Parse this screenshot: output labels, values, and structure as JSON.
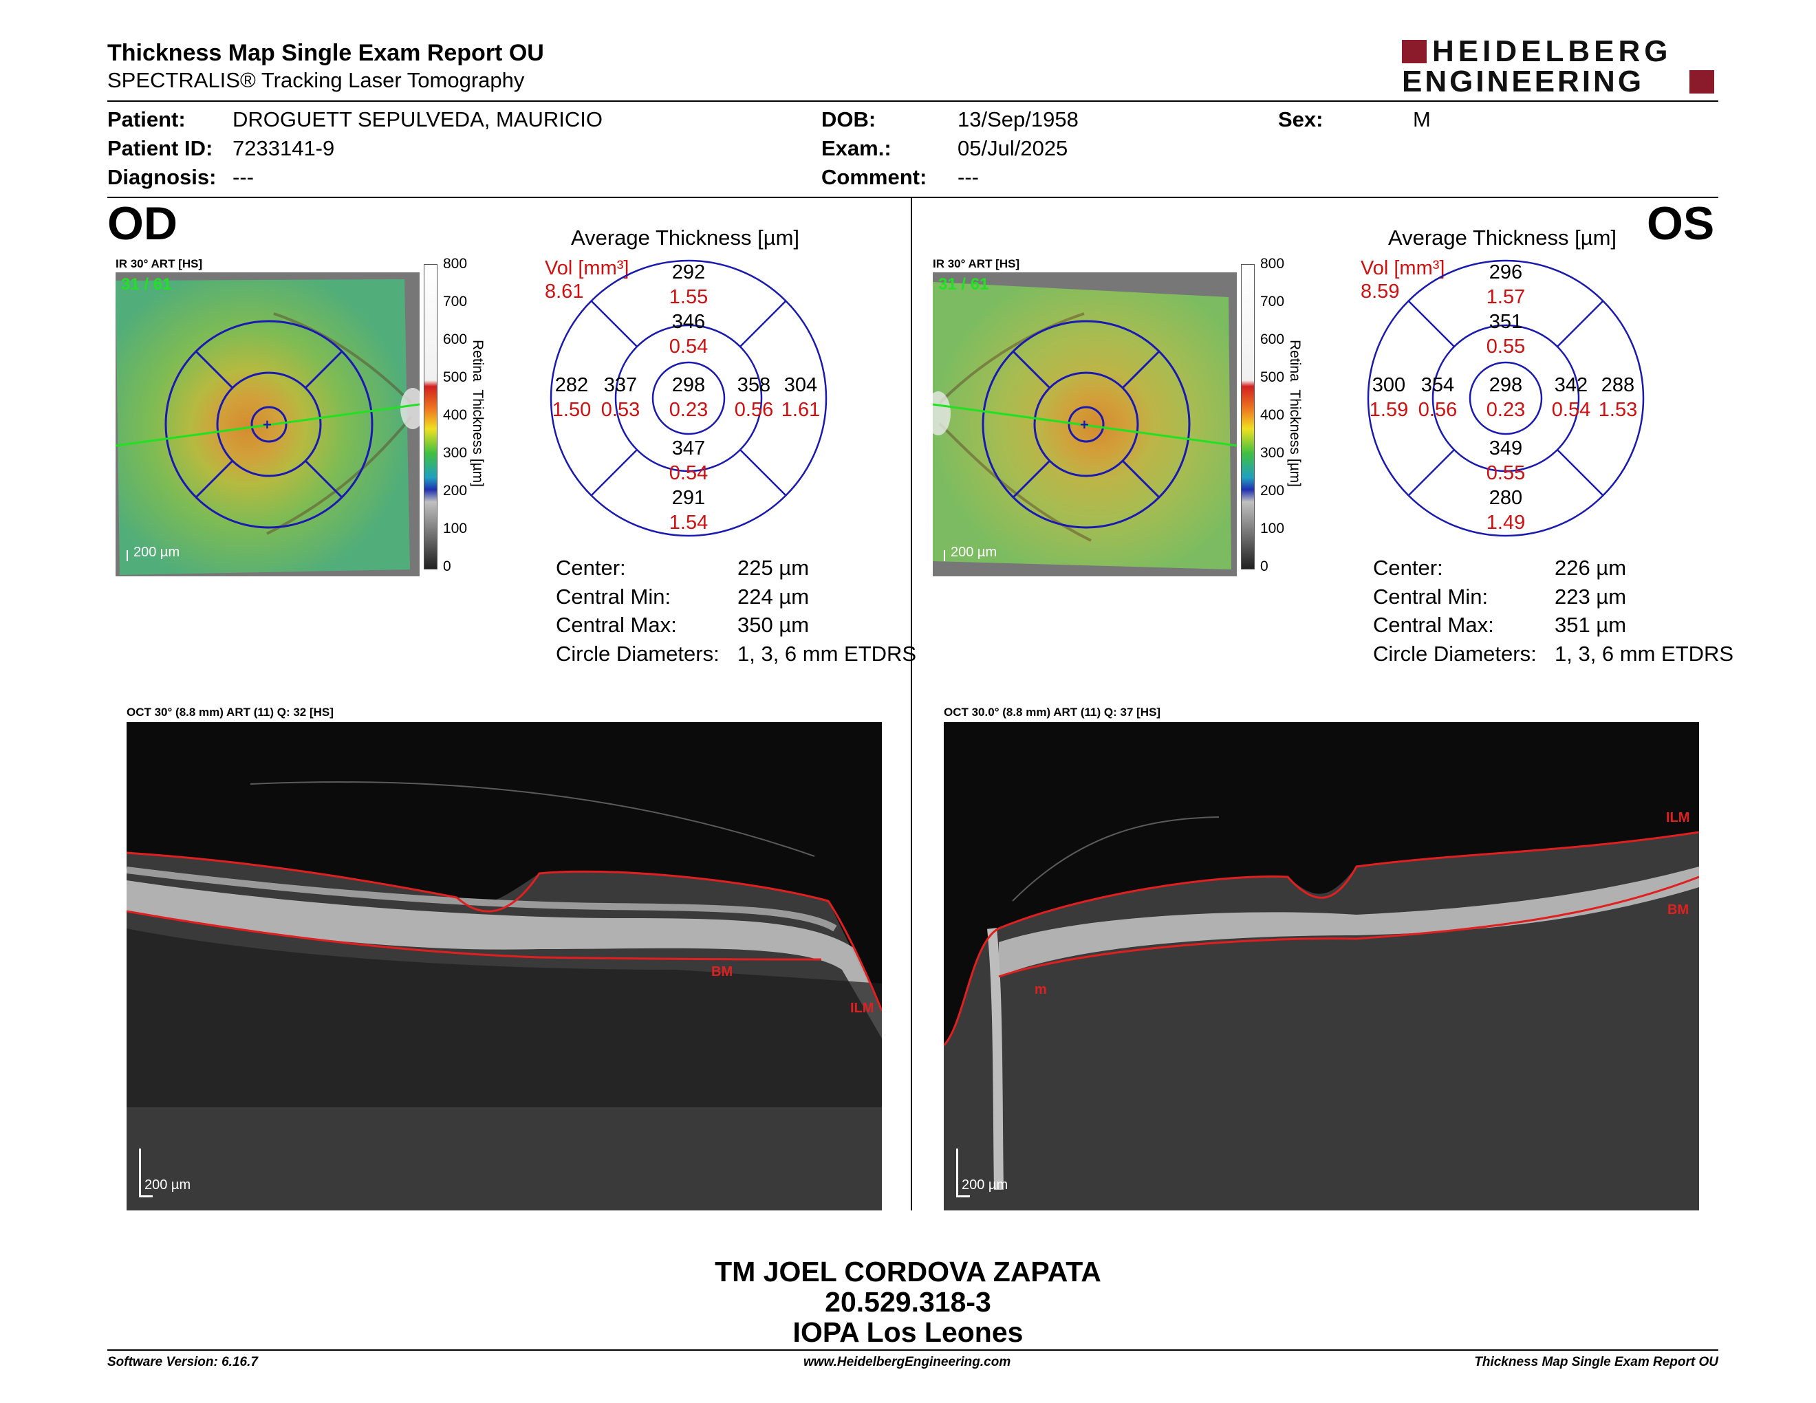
{
  "report": {
    "title": "Thickness Map Single Exam Report OU",
    "subtitle": "SPECTRALIS® Tracking Laser Tomography",
    "logo_line1": "HEIDELBERG",
    "logo_line2": "ENGINEERING",
    "brand_color": "#8b1a2b"
  },
  "patient": {
    "patient_label": "Patient:",
    "patient_value": "DROGUETT SEPULVEDA, MAURICIO",
    "id_label": "Patient ID:",
    "id_value": "7233141-9",
    "diagnosis_label": "Diagnosis:",
    "diagnosis_value": "---",
    "dob_label": "DOB:",
    "dob_value": "13/Sep/1958",
    "exam_label": "Exam.:",
    "exam_value": "05/Jul/2025",
    "comment_label": "Comment:",
    "comment_value": "---",
    "sex_label": "Sex:",
    "sex_value": "M"
  },
  "colorbar": {
    "ticks": [
      "800",
      "700",
      "600",
      "500",
      "400",
      "300",
      "200",
      "100",
      "0"
    ],
    "axis_label_1": "Retina",
    "axis_label_2": "Thickness [µm]"
  },
  "od": {
    "eye_label": "OD",
    "ir_header": "IR 30° ART [HS]",
    "ir_frames": "31 / 61",
    "scale": "200 µm",
    "avg_title": "Average Thickness [µm]",
    "vol_label": "Vol [mm³]",
    "vol_value": "8.61",
    "sectors": {
      "sup_outer": [
        "292",
        "1.55"
      ],
      "sup_inner": [
        "346",
        "0.54"
      ],
      "tmp_outer": [
        "282",
        "1.50"
      ],
      "tmp_inner": [
        "337",
        "0.53"
      ],
      "center": [
        "298",
        "0.23"
      ],
      "nas_inner": [
        "358",
        "0.56"
      ],
      "nas_outer": [
        "304",
        "1.61"
      ],
      "inf_inner": [
        "347",
        "0.54"
      ],
      "inf_outer": [
        "291",
        "1.54"
      ]
    },
    "stats": [
      {
        "label": "Center:",
        "value": "225 µm"
      },
      {
        "label": "Central Min:",
        "value": "224 µm"
      },
      {
        "label": "Central Max:",
        "value": "350 µm"
      },
      {
        "label": "Circle Diameters:",
        "value": "1, 3, 6 mm ETDRS"
      }
    ],
    "oct_header": "OCT 30° (8.8 mm) ART (11) Q: 32 [HS]",
    "oct_scale": "200 µm",
    "ilm_label": "ILM",
    "bm_label": "BM"
  },
  "os": {
    "eye_label": "OS",
    "ir_header": "IR 30° ART [HS]",
    "ir_frames": "31 / 61",
    "scale": "200 µm",
    "avg_title": "Average Thickness [µm]",
    "vol_label": "Vol [mm³]",
    "vol_value": "8.59",
    "sectors": {
      "sup_outer": [
        "296",
        "1.57"
      ],
      "sup_inner": [
        "351",
        "0.55"
      ],
      "tmp_outer": [
        "300",
        "1.59"
      ],
      "tmp_inner": [
        "354",
        "0.56"
      ],
      "center": [
        "298",
        "0.23"
      ],
      "nas_inner": [
        "342",
        "0.54"
      ],
      "nas_outer": [
        "288",
        "1.53"
      ],
      "inf_inner": [
        "349",
        "0.55"
      ],
      "inf_outer": [
        "280",
        "1.49"
      ]
    },
    "stats": [
      {
        "label": "Center:",
        "value": "226 µm"
      },
      {
        "label": "Central Min:",
        "value": "223 µm"
      },
      {
        "label": "Central Max:",
        "value": "351 µm"
      },
      {
        "label": "Circle Diameters:",
        "value": "1, 3, 6 mm ETDRS"
      }
    ],
    "oct_header": "OCT 30.0° (8.8 mm) ART (11) Q: 37 [HS]",
    "oct_scale": "200 µm",
    "ilm_label": "ILM",
    "bm_label": "BM",
    "bm_short": "m"
  },
  "signature": {
    "line1": "TM JOEL CORDOVA ZAPATA",
    "line2": "20.529.318-3",
    "line3": "IOPA Los Leones"
  },
  "footer": {
    "left": "Software Version: 6.16.7",
    "center": "www.HeidelbergEngineering.com",
    "right": "Thickness Map Single Exam Report OU"
  }
}
